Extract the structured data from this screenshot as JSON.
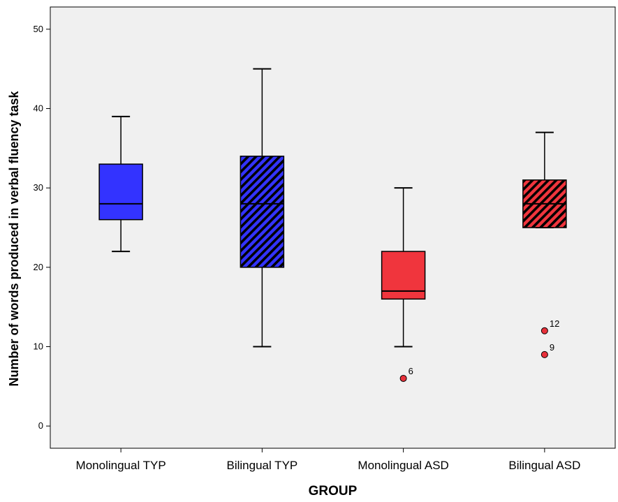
{
  "chart_data": {
    "type": "box",
    "xlabel": "GROUP",
    "ylabel": "Number of words produced in verbal fluency task",
    "ylim": [
      -2.8,
      52.8
    ],
    "yticks": [
      0,
      10,
      20,
      30,
      40,
      50
    ],
    "categories": [
      "Monolingual TYP",
      "Bilingual TYP",
      "Monolingual ASD",
      "Bilingual ASD"
    ],
    "boxes": [
      {
        "category": "Monolingual TYP",
        "min": 22,
        "q1": 26,
        "median": 28,
        "q3": 33,
        "max": 39,
        "color": "#3333ff",
        "hatched": false,
        "outliers": []
      },
      {
        "category": "Bilingual TYP",
        "min": 10,
        "q1": 20,
        "median": 28,
        "q3": 34,
        "max": 45,
        "color": "#3333ff",
        "hatched": true,
        "outliers": []
      },
      {
        "category": "Monolingual ASD",
        "min": 10,
        "q1": 16,
        "median": 17,
        "q3": 22,
        "max": 30,
        "color": "#f0353d",
        "hatched": false,
        "outliers": [
          {
            "value": 6,
            "label": "6"
          }
        ]
      },
      {
        "category": "Bilingual ASD",
        "min": 25,
        "q1": 25,
        "median": 28,
        "q3": 31,
        "max": 37,
        "color": "#f0353d",
        "hatched": true,
        "outliers": [
          {
            "value": 12,
            "label": "12"
          },
          {
            "value": 9,
            "label": "9"
          }
        ]
      }
    ],
    "plot_background": "#f0f0f0",
    "grid": false,
    "legend": "none"
  }
}
